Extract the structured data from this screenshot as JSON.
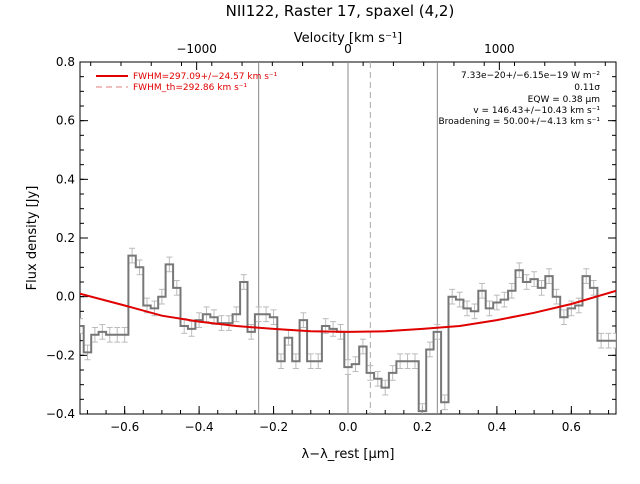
{
  "chart_data": {
    "type": "line",
    "title": "NII122, Raster 17, spaxel (4,2)",
    "xlabel": "λ−λ_rest [μm]",
    "ylabel": "Flux density [Jy]",
    "top_xlabel": "Velocity [km s⁻¹]",
    "xlim": [
      -0.72,
      0.72
    ],
    "ylim": [
      -0.4,
      0.8
    ],
    "x_ticks": [
      -0.6,
      -0.4,
      -0.2,
      0.0,
      0.2,
      0.4,
      0.6
    ],
    "x_tick_labels": [
      "−0.6",
      "−0.4",
      "−0.2",
      "0.0",
      "0.2",
      "0.4",
      "0.6"
    ],
    "y_ticks": [
      -0.4,
      -0.2,
      0.0,
      0.2,
      0.4,
      0.6,
      0.8
    ],
    "y_tick_labels": [
      "−0.4",
      "−0.2",
      "0.0",
      "0.2",
      "0.4",
      "0.6",
      "0.8"
    ],
    "top_ticks": [
      -1000,
      0,
      1000
    ],
    "top_tick_labels": [
      "−1000",
      "0",
      "1000"
    ],
    "legend": [
      {
        "label": "FWHM=297.09+/−24.57 km s⁻¹",
        "color": "#e00000",
        "style": "solid"
      },
      {
        "label": "FWHM_th=292.86 km s⁻¹",
        "color": "#e00000",
        "style": "dashed"
      }
    ],
    "annotations": [
      "7.33e−20+/−6.15e−19 W m⁻²",
      "0.11σ",
      "EQW = 0.38 μm",
      "v = 146.43+/−10.43 km s⁻¹",
      "Broadening = 50.00+/−4.13 km s⁻¹"
    ],
    "vertical_lines": [
      {
        "x": -0.24,
        "style": "solid",
        "color": "#888888"
      },
      {
        "x": 0.0,
        "style": "solid",
        "color": "#888888"
      },
      {
        "x": 0.06,
        "style": "dashed",
        "color": "#aaaaaa"
      },
      {
        "x": 0.24,
        "style": "solid",
        "color": "#888888"
      }
    ],
    "series": [
      {
        "style": "steps",
        "color": "#777777",
        "error": 0.025,
        "x": [
          -0.72,
          -0.7,
          -0.68,
          -0.66,
          -0.64,
          -0.62,
          -0.6,
          -0.58,
          -0.56,
          -0.54,
          -0.52,
          -0.5,
          -0.48,
          -0.46,
          -0.44,
          -0.42,
          -0.4,
          -0.38,
          -0.36,
          -0.34,
          -0.32,
          -0.3,
          -0.28,
          -0.26,
          -0.24,
          -0.22,
          -0.2,
          -0.18,
          -0.16,
          -0.14,
          -0.12,
          -0.1,
          -0.08,
          -0.06,
          -0.04,
          -0.02,
          0.0,
          0.02,
          0.04,
          0.06,
          0.08,
          0.1,
          0.12,
          0.14,
          0.16,
          0.18,
          0.2,
          0.22,
          0.24,
          0.26,
          0.28,
          0.3,
          0.32,
          0.34,
          0.36,
          0.38,
          0.4,
          0.42,
          0.44,
          0.46,
          0.48,
          0.5,
          0.52,
          0.54,
          0.56,
          0.58,
          0.6,
          0.62,
          0.64,
          0.66,
          0.68,
          0.7,
          0.72
        ],
        "y": [
          -0.1,
          -0.19,
          -0.13,
          -0.12,
          -0.13,
          -0.13,
          -0.13,
          0.14,
          0.1,
          -0.03,
          -0.04,
          0.0,
          0.11,
          0.03,
          -0.1,
          -0.11,
          -0.08,
          -0.06,
          -0.07,
          -0.09,
          -0.09,
          -0.06,
          0.05,
          -0.12,
          -0.06,
          -0.06,
          -0.07,
          -0.22,
          -0.14,
          -0.22,
          -0.08,
          -0.22,
          -0.22,
          -0.1,
          -0.11,
          -0.12,
          -0.24,
          -0.23,
          -0.17,
          -0.26,
          -0.28,
          -0.31,
          -0.26,
          -0.22,
          -0.22,
          -0.22,
          -0.39,
          -0.18,
          -0.12,
          -0.36,
          0.0,
          -0.01,
          -0.04,
          -0.05,
          0.02,
          -0.04,
          -0.02,
          -0.01,
          0.02,
          0.09,
          0.05,
          0.06,
          0.03,
          0.07,
          0.0,
          -0.07,
          -0.04,
          -0.03,
          0.07,
          0.03,
          -0.15,
          -0.15,
          -0.15
        ]
      },
      {
        "style": "fit",
        "color": "#e00000",
        "x": [
          -0.72,
          -0.6,
          -0.5,
          -0.4,
          -0.3,
          -0.2,
          -0.1,
          0.0,
          0.1,
          0.2,
          0.3,
          0.4,
          0.5,
          0.6,
          0.72
        ],
        "y": [
          0.01,
          -0.03,
          -0.065,
          -0.085,
          -0.1,
          -0.11,
          -0.118,
          -0.12,
          -0.118,
          -0.11,
          -0.1,
          -0.08,
          -0.055,
          -0.025,
          0.02
        ]
      }
    ]
  }
}
